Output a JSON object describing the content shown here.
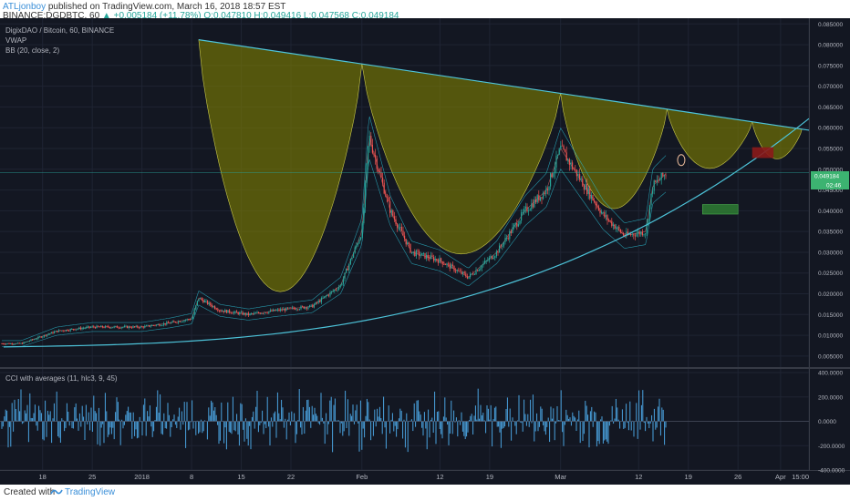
{
  "header": {
    "author": "ATLjonboy",
    "published": " published on TradingView.com, March 16, 2018 18:57 EST",
    "symbol": "BINANCE:DGDBTC, 60",
    "change": "▲ +0.005184 (+11.78%)",
    "ohlc": " O:0.047810 H:0.049416 L:0.047568 C:0.049184"
  },
  "legend": {
    "title": "DigixDAO / Bitcoin, 60, BINANCE",
    "vwap": "VWAP",
    "bb": "BB (20, close, 2)",
    "cci": "CCI with averages (11, hlc3, 9, 45)"
  },
  "price_axis": {
    "ticks": [
      "0.005000",
      "0.010000",
      "0.015000",
      "0.020000",
      "0.025000",
      "0.030000",
      "0.035000",
      "0.040000",
      "0.045000",
      "0.050000",
      "0.055000",
      "0.060000",
      "0.065000",
      "0.070000",
      "0.075000",
      "0.080000",
      "0.085000"
    ],
    "last_price_label": "0.049184",
    "countdown_label": "02:46"
  },
  "cci_axis": {
    "ticks": [
      "400.0000",
      "200.0000",
      "0.0000",
      "-200.0000",
      "-400.0000"
    ]
  },
  "time_axis": {
    "ticks": [
      "18",
      "25",
      "2018",
      "8",
      "15",
      "22",
      "Feb",
      "12",
      "19",
      "Mar",
      "12",
      "19",
      "26",
      "Apr",
      "15:00"
    ]
  },
  "footer": {
    "created_with": "Created with",
    "brand": "TradingView"
  },
  "colors": {
    "background": "#131722",
    "candle_up": "#26a69a",
    "candle_down": "#ef5350",
    "cup_fill": "#808000",
    "trendline": "#4dc3d9",
    "target_box": "#2e7d32",
    "stop_box": "#8b1a1a",
    "cci": "#4aa3df"
  },
  "chart_data": [
    {
      "type": "line",
      "series": [
        {
          "x": [
            "2017-12-15",
            "2017-12-20",
            "2017-12-25",
            "2018-01-01",
            "2018-01-05",
            "2018-01-08",
            "2018-01-09",
            "2018-01-12",
            "2018-01-16",
            "2018-01-20",
            "2018-01-25",
            "2018-01-29",
            "2018-02-01",
            "2018-02-02",
            "2018-02-05",
            "2018-02-08",
            "2018-02-12",
            "2018-02-16",
            "2018-02-20",
            "2018-02-24",
            "2018-02-27",
            "2018-03-01",
            "2018-03-04",
            "2018-03-07",
            "2018-03-10",
            "2018-03-13",
            "2018-03-14",
            "2018-03-16"
          ],
          "values": [
            0.008,
            0.011,
            0.012,
            0.012,
            0.013,
            0.014,
            0.019,
            0.016,
            0.015,
            0.016,
            0.017,
            0.022,
            0.035,
            0.058,
            0.04,
            0.03,
            0.028,
            0.024,
            0.03,
            0.04,
            0.045,
            0.055,
            0.047,
            0.039,
            0.034,
            0.035,
            0.046,
            0.049184
          ]
        }
      ],
      "ylim": [
        0.003,
        0.0855
      ],
      "grid": true
    },
    {
      "type": "bar",
      "series": [
        {
          "name": "CCI with averages (11, hlc3, 9, 45)",
          "values": []
        }
      ],
      "ylim": [
        -400,
        400
      ]
    }
  ]
}
